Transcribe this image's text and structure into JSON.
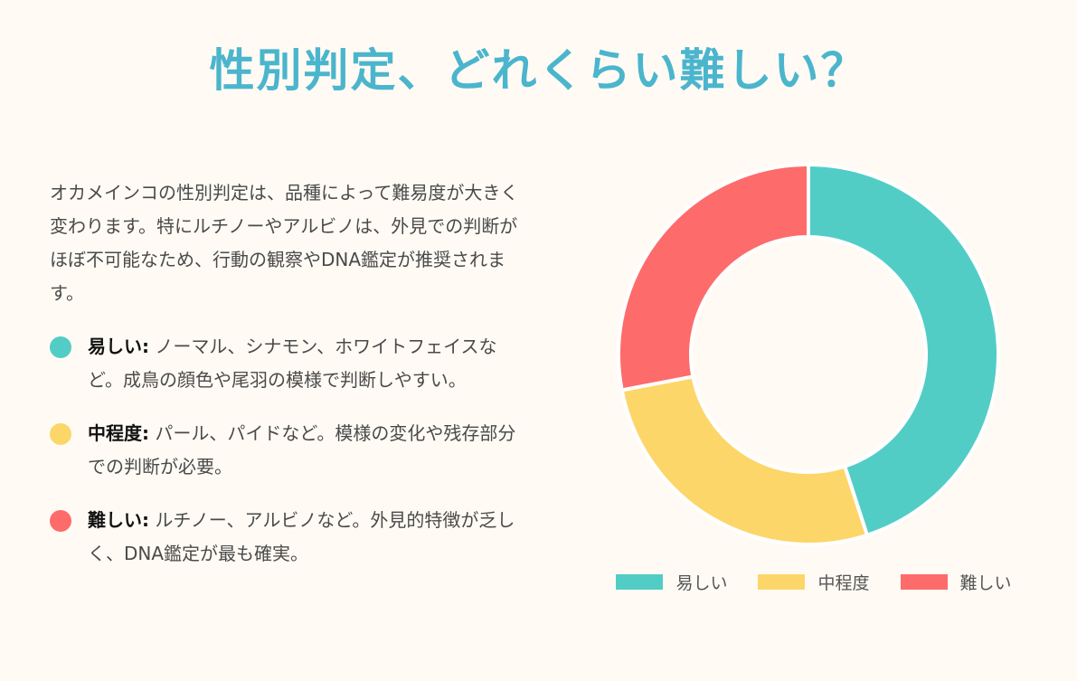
{
  "title": "性別判定、どれくらい難しい？",
  "intro": "オカメインコの性別判定は、品種によって難易度が大きく変わります。特にルチノーやアルビノは、外見での判断がほぼ不可能なため、行動の観察やDNA鑑定が推奨されます。",
  "legend": [
    {
      "label": "易しい:",
      "text": "ノーマル、シナモン、ホワイトフェイスなど。成鳥の顔色や尾羽の模様で判断しやすい。",
      "color": "#52cdc6"
    },
    {
      "label": "中程度:",
      "text": "パール、パイドなど。模様の変化や残存部分での判断が必要。",
      "color": "#fdd669"
    },
    {
      "label": "難しい:",
      "text": "ルチノー、アルビノなど。外見的特徴が乏しく、DNA鑑定が最も確実。",
      "color": "#fe6b6b"
    }
  ],
  "chart_data": {
    "type": "pie",
    "variant": "doughnut",
    "categories": [
      "易しい",
      "中程度",
      "難しい"
    ],
    "values": [
      45,
      27,
      28
    ],
    "colors": [
      "#52cdc6",
      "#fdd669",
      "#fe6b6b"
    ],
    "legend_position": "bottom"
  }
}
